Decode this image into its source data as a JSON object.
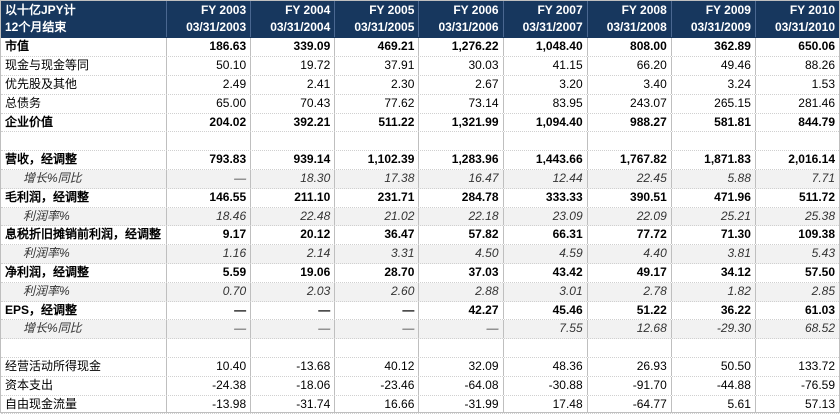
{
  "header": {
    "unit": "以十亿JPY计",
    "period": "12个月结束",
    "columns": [
      {
        "fy": "FY 2003",
        "date": "03/31/2003"
      },
      {
        "fy": "FY 2004",
        "date": "03/31/2004"
      },
      {
        "fy": "FY 2005",
        "date": "03/31/2005"
      },
      {
        "fy": "FY 2006",
        "date": "03/31/2006"
      },
      {
        "fy": "FY 2007",
        "date": "03/31/2007"
      },
      {
        "fy": "FY 2008",
        "date": "03/31/2008"
      },
      {
        "fy": "FY 2009",
        "date": "03/31/2009"
      },
      {
        "fy": "FY 2010",
        "date": "03/31/2010"
      }
    ]
  },
  "rows": [
    {
      "label": "市值",
      "values": [
        "186.63",
        "339.09",
        "469.21",
        "1,276.22",
        "1,048.40",
        "808.00",
        "362.89",
        "650.06"
      ]
    },
    {
      "label": "现金与现金等同",
      "values": [
        "50.10",
        "19.72",
        "37.91",
        "30.03",
        "41.15",
        "66.20",
        "49.46",
        "88.26"
      ]
    },
    {
      "label": "优先股及其他",
      "values": [
        "2.49",
        "2.41",
        "2.30",
        "2.67",
        "3.20",
        "3.40",
        "3.24",
        "1.53"
      ]
    },
    {
      "label": "总债务",
      "values": [
        "65.00",
        "70.43",
        "77.62",
        "73.14",
        "83.95",
        "243.07",
        "265.15",
        "281.46"
      ]
    },
    {
      "label": "企业价值",
      "values": [
        "204.02",
        "392.21",
        "511.22",
        "1,321.99",
        "1,094.40",
        "988.27",
        "581.81",
        "844.79"
      ]
    },
    {
      "label": "营收，经调整",
      "values": [
        "793.83",
        "939.14",
        "1,102.39",
        "1,283.96",
        "1,443.66",
        "1,767.82",
        "1,871.83",
        "2,016.14"
      ]
    },
    {
      "label": "增长%同比",
      "values": [
        "—",
        "18.30",
        "17.38",
        "16.47",
        "12.44",
        "22.45",
        "5.88",
        "7.71"
      ]
    },
    {
      "label": "毛利润，经调整",
      "values": [
        "146.55",
        "211.10",
        "231.71",
        "284.78",
        "333.33",
        "390.51",
        "471.96",
        "511.72"
      ]
    },
    {
      "label": "利润率%",
      "values": [
        "18.46",
        "22.48",
        "21.02",
        "22.18",
        "23.09",
        "22.09",
        "25.21",
        "25.38"
      ]
    },
    {
      "label": "息税折旧摊销前利润，经调整",
      "values": [
        "9.17",
        "20.12",
        "36.47",
        "57.82",
        "66.31",
        "77.72",
        "71.30",
        "109.38"
      ]
    },
    {
      "label": "利润率%",
      "values": [
        "1.16",
        "2.14",
        "3.31",
        "4.50",
        "4.59",
        "4.40",
        "3.81",
        "5.43"
      ]
    },
    {
      "label": "净利润，经调整",
      "values": [
        "5.59",
        "19.06",
        "28.70",
        "37.03",
        "43.42",
        "49.17",
        "34.12",
        "57.50"
      ]
    },
    {
      "label": "利润率%",
      "values": [
        "0.70",
        "2.03",
        "2.60",
        "2.88",
        "3.01",
        "2.78",
        "1.82",
        "2.85"
      ]
    },
    {
      "label": "EPS，经调整",
      "values": [
        "—",
        "—",
        "—",
        "42.27",
        "45.46",
        "51.22",
        "36.22",
        "61.03"
      ]
    },
    {
      "label": "增长%同比",
      "values": [
        "—",
        "—",
        "—",
        "—",
        "7.55",
        "12.68",
        "-29.30",
        "68.52"
      ]
    },
    {
      "label": "经营活动所得现金",
      "values": [
        "10.40",
        "-13.68",
        "40.12",
        "32.09",
        "48.36",
        "26.93",
        "50.50",
        "133.72"
      ]
    },
    {
      "label": "资本支出",
      "values": [
        "-24.38",
        "-18.06",
        "-23.46",
        "-64.08",
        "-30.88",
        "-91.70",
        "-44.88",
        "-76.59"
      ]
    },
    {
      "label": "自由现金流量",
      "values": [
        "-13.98",
        "-31.74",
        "16.66",
        "-31.99",
        "17.48",
        "-64.77",
        "5.61",
        "57.13"
      ]
    }
  ]
}
